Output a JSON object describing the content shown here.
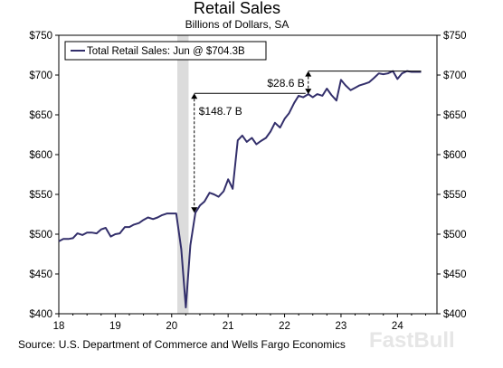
{
  "chart_data": {
    "type": "line",
    "title": "Retail Sales",
    "subtitle": "Billions of Dollars, SA",
    "xlabel": "",
    "ylabel": "",
    "x_ticks": [
      "18",
      "19",
      "20",
      "21",
      "22",
      "23",
      "24"
    ],
    "x_range": [
      2018.0,
      2024.7
    ],
    "y_ticks": [
      "$400",
      "$450",
      "$500",
      "$550",
      "$600",
      "$650",
      "$700",
      "$750"
    ],
    "ylim": [
      400,
      750
    ],
    "grid": false,
    "legend_position": "top-left",
    "recession_shading": [
      2020.1,
      2020.3
    ],
    "series": [
      {
        "name": "Total Retail Sales: Jun @ $704.3B",
        "color": "#332f6b",
        "x": [
          2018.0,
          2018.08,
          2018.17,
          2018.25,
          2018.33,
          2018.42,
          2018.5,
          2018.58,
          2018.67,
          2018.75,
          2018.83,
          2018.92,
          2019.0,
          2019.08,
          2019.17,
          2019.25,
          2019.33,
          2019.42,
          2019.5,
          2019.58,
          2019.67,
          2019.75,
          2019.83,
          2019.92,
          2020.0,
          2020.08,
          2020.17,
          2020.25,
          2020.33,
          2020.42,
          2020.5,
          2020.58,
          2020.67,
          2020.75,
          2020.83,
          2020.92,
          2021.0,
          2021.08,
          2021.17,
          2021.25,
          2021.33,
          2021.42,
          2021.5,
          2021.58,
          2021.67,
          2021.75,
          2021.83,
          2021.92,
          2022.0,
          2022.08,
          2022.17,
          2022.25,
          2022.33,
          2022.42,
          2022.5,
          2022.58,
          2022.67,
          2022.75,
          2022.83,
          2022.92,
          2023.0,
          2023.08,
          2023.17,
          2023.25,
          2023.33,
          2023.42,
          2023.5,
          2023.58,
          2023.67,
          2023.75,
          2023.83,
          2023.92,
          2024.0,
          2024.08,
          2024.17,
          2024.25,
          2024.33,
          2024.42
        ],
        "values": [
          491,
          494,
          494,
          495,
          501,
          499,
          502,
          502,
          501,
          506,
          508,
          497,
          500,
          501,
          509,
          509,
          512,
          514,
          518,
          521,
          519,
          521,
          524,
          526,
          526,
          526,
          481,
          408,
          486,
          527,
          536,
          541,
          552,
          550,
          547,
          554,
          569,
          557,
          618,
          624,
          616,
          621,
          613,
          617,
          621,
          629,
          640,
          634,
          645,
          652,
          665,
          674,
          672,
          676,
          672,
          676,
          674,
          683,
          675,
          668,
          694,
          687,
          681,
          684,
          687,
          689,
          691,
          696,
          702,
          701,
          702,
          705,
          695,
          702,
          705,
          704,
          704,
          704
        ]
      }
    ],
    "annotations": [
      "$148.7 B",
      "$28.6 B"
    ]
  }
}
